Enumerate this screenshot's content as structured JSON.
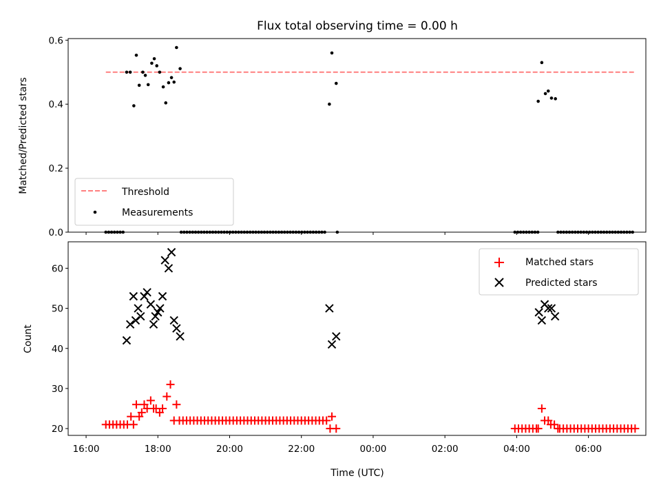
{
  "chart_data": {
    "title": "Flux total observing time = 0.00 h",
    "xlabel": "Time (UTC)",
    "x_units": "hours since 16:00 UTC",
    "xlim": [
      -0.5,
      15.6
    ],
    "xticks": [
      {
        "value": 0,
        "label": "16:00"
      },
      {
        "value": 2,
        "label": "18:00"
      },
      {
        "value": 4,
        "label": "20:00"
      },
      {
        "value": 6,
        "label": "22:00"
      },
      {
        "value": 8,
        "label": "00:00"
      },
      {
        "value": 10,
        "label": "02:00"
      },
      {
        "value": 12,
        "label": "04:00"
      },
      {
        "value": 14,
        "label": "06:00"
      }
    ],
    "top_panel": {
      "type": "scatter",
      "ylabel": "Matched/Predicted stars",
      "ylim": [
        0,
        0.605
      ],
      "yticks": [
        {
          "value": 0.0,
          "label": "0.0"
        },
        {
          "value": 0.2,
          "label": "0.2"
        },
        {
          "value": 0.4,
          "label": "0.4"
        },
        {
          "value": 0.6,
          "label": "0.6"
        }
      ],
      "legend": {
        "position": "lower-left",
        "threshold_label": "Threshold",
        "measurements_label": "Measurements"
      },
      "threshold": {
        "name": "Threshold",
        "value": 0.5,
        "x_range": [
          0.55,
          15.3
        ],
        "color": "#ff7f7f"
      },
      "measurements_color": "#000000",
      "measurements_nonzero": [
        [
          1.13,
          0.5
        ],
        [
          1.23,
          0.5
        ],
        [
          1.33,
          0.395
        ],
        [
          1.4,
          0.553
        ],
        [
          1.48,
          0.459
        ],
        [
          1.58,
          0.5
        ],
        [
          1.65,
          0.49
        ],
        [
          1.73,
          0.461
        ],
        [
          1.83,
          0.528
        ],
        [
          1.9,
          0.542
        ],
        [
          1.97,
          0.52
        ],
        [
          2.05,
          0.5
        ],
        [
          2.15,
          0.454
        ],
        [
          2.22,
          0.404
        ],
        [
          2.3,
          0.467
        ],
        [
          2.38,
          0.483
        ],
        [
          2.45,
          0.469
        ],
        [
          2.52,
          0.577
        ],
        [
          2.62,
          0.511
        ],
        [
          6.78,
          0.4
        ],
        [
          6.85,
          0.56
        ],
        [
          6.97,
          0.465
        ],
        [
          12.6,
          0.409
        ],
        [
          12.7,
          0.53
        ],
        [
          12.8,
          0.433
        ],
        [
          12.88,
          0.441
        ],
        [
          12.97,
          0.419
        ],
        [
          13.08,
          0.417
        ]
      ],
      "measurements_zero_ranges": [
        [
          0.55,
          1.08
        ],
        [
          2.65,
          6.7
        ],
        [
          7.0,
          7.06
        ],
        [
          11.95,
          12.65
        ],
        [
          13.15,
          15.3
        ]
      ],
      "zero_spacing": 0.08
    },
    "bottom_panel": {
      "type": "scatter",
      "ylabel": "Count",
      "ylim": [
        18.3,
        66.6
      ],
      "yticks": [
        {
          "value": 20,
          "label": "20"
        },
        {
          "value": 30,
          "label": "30"
        },
        {
          "value": 40,
          "label": "40"
        },
        {
          "value": 50,
          "label": "50"
        },
        {
          "value": 60,
          "label": "60"
        }
      ],
      "legend": {
        "position": "top-right",
        "matched_label": "Matched stars",
        "predicted_label": "Predicted stars"
      },
      "series": [
        {
          "name": "Matched stars",
          "marker": "+",
          "color": "#ff0000",
          "points": [
            [
              1.15,
              21
            ],
            [
              1.25,
              23
            ],
            [
              1.32,
              21
            ],
            [
              1.4,
              26
            ],
            [
              1.48,
              23
            ],
            [
              1.55,
              24
            ],
            [
              1.62,
              26
            ],
            [
              1.7,
              25
            ],
            [
              1.8,
              27
            ],
            [
              1.88,
              25
            ],
            [
              1.95,
              25
            ],
            [
              2.05,
              24
            ],
            [
              2.13,
              25
            ],
            [
              2.25,
              28
            ],
            [
              2.35,
              31
            ],
            [
              2.45,
              22
            ],
            [
              2.52,
              26
            ],
            [
              2.6,
              22
            ],
            [
              6.8,
              20
            ],
            [
              6.85,
              23
            ],
            [
              6.97,
              20
            ],
            [
              12.6,
              20
            ],
            [
              12.7,
              25
            ],
            [
              12.78,
              22
            ],
            [
              12.88,
              22
            ],
            [
              12.95,
              21
            ],
            [
              13.05,
              21
            ],
            [
              13.15,
              20
            ]
          ],
          "flat_runs": [
            {
              "x_range": [
                0.55,
                1.1
              ],
              "value": 21
            },
            {
              "x_range": [
                2.7,
                6.75
              ],
              "value": 22
            },
            {
              "x_range": [
                11.95,
                12.55
              ],
              "value": 20
            },
            {
              "x_range": [
                13.2,
                15.3
              ],
              "value": 20
            }
          ],
          "flat_spacing": 0.1
        },
        {
          "name": "Predicted stars",
          "marker": "x",
          "color": "#000000",
          "points": [
            [
              1.13,
              42
            ],
            [
              1.23,
              46
            ],
            [
              1.32,
              53
            ],
            [
              1.38,
              47
            ],
            [
              1.45,
              50
            ],
            [
              1.52,
              48
            ],
            [
              1.62,
              53
            ],
            [
              1.7,
              54
            ],
            [
              1.8,
              51
            ],
            [
              1.88,
              46
            ],
            [
              1.93,
              48
            ],
            [
              2.0,
              49
            ],
            [
              2.06,
              50
            ],
            [
              2.13,
              53
            ],
            [
              2.2,
              62
            ],
            [
              2.3,
              60
            ],
            [
              2.38,
              64
            ],
            [
              2.45,
              47
            ],
            [
              2.52,
              45
            ],
            [
              2.62,
              43
            ],
            [
              6.78,
              50
            ],
            [
              6.85,
              41
            ],
            [
              6.97,
              43
            ],
            [
              12.62,
              49
            ],
            [
              12.7,
              47
            ],
            [
              12.78,
              51
            ],
            [
              12.88,
              50
            ],
            [
              12.97,
              50
            ],
            [
              13.07,
              48
            ]
          ]
        }
      ]
    }
  }
}
